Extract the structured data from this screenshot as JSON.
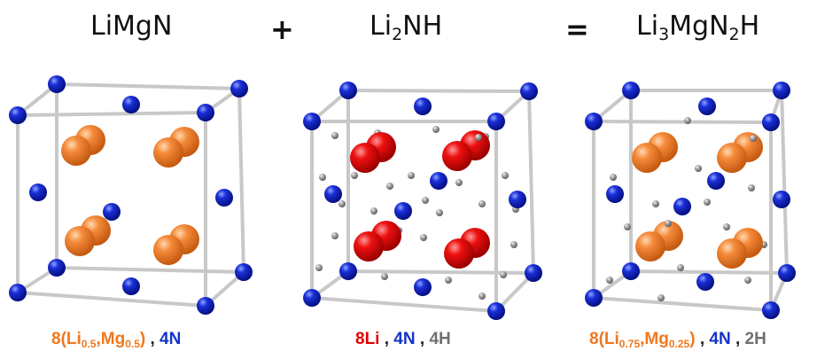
{
  "formulas": {
    "left": {
      "a": "LiMg",
      "b": "N"
    },
    "middle": {
      "a": "Li",
      "sub": "2",
      "b": "NH"
    },
    "right": {
      "a": "Li",
      "sub1": "3",
      "b": "MgN",
      "sub2": "2",
      "c": "H"
    }
  },
  "operators": {
    "plus": "+",
    "equals": "="
  },
  "captions": {
    "left": {
      "pre": "8(Li",
      "s1": "0.5",
      "mid": ",Mg",
      "s2": "0.5",
      "post": ")",
      "sep": " , ",
      "n": "4N"
    },
    "middle": {
      "li": "8Li",
      "sep1": " , ",
      "n": "4N",
      "sep2": " , ",
      "h": "4H"
    },
    "right": {
      "pre": "8(Li",
      "s1": "0.75",
      "mid": ",Mg",
      "s2": "0.25",
      "post": ")",
      "sep1": " , ",
      "n": "4N",
      "sep2": " , ",
      "h": "2H"
    }
  },
  "colors": {
    "li_mg_mixed": "#f0781e",
    "lithium": "#e00000",
    "nitrogen": "#1432c8",
    "hydrogen": "#9a9a9a",
    "frame": "#c8c8c8"
  }
}
